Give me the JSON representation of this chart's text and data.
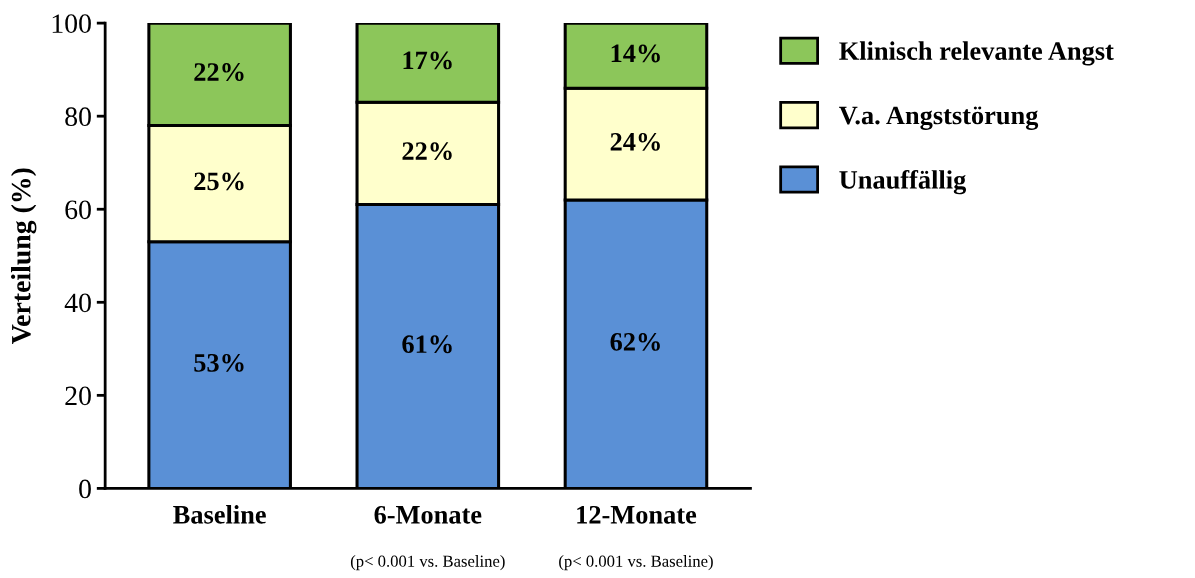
{
  "chart_data": {
    "type": "bar",
    "stacked": true,
    "ylabel": "Verteilung (%)",
    "categories": [
      "Baseline",
      "6-Monate",
      "12-Monate"
    ],
    "series": [
      {
        "name": "Unauffällig",
        "color": "#5a90d6",
        "values": [
          53,
          61,
          62
        ],
        "value_labels": [
          "53%",
          "61%",
          "62%"
        ]
      },
      {
        "name": "V.a. Angststörung",
        "color": "#ffffcc",
        "values": [
          25,
          22,
          24
        ],
        "value_labels": [
          "25%",
          "22%",
          "24%"
        ]
      },
      {
        "name": "Klinisch relevante Angst",
        "color": "#8cc65a",
        "values": [
          22,
          17,
          14
        ],
        "value_labels": [
          "22%",
          "17%",
          "14%"
        ]
      }
    ],
    "ylim": [
      0,
      100
    ],
    "yticks": [
      0,
      20,
      40,
      60,
      80,
      100
    ],
    "grid": false,
    "legend": "right",
    "annotations": [
      "(p< 0.001 vs. Baseline)",
      "(p< 0.001 vs. Baseline)"
    ]
  }
}
